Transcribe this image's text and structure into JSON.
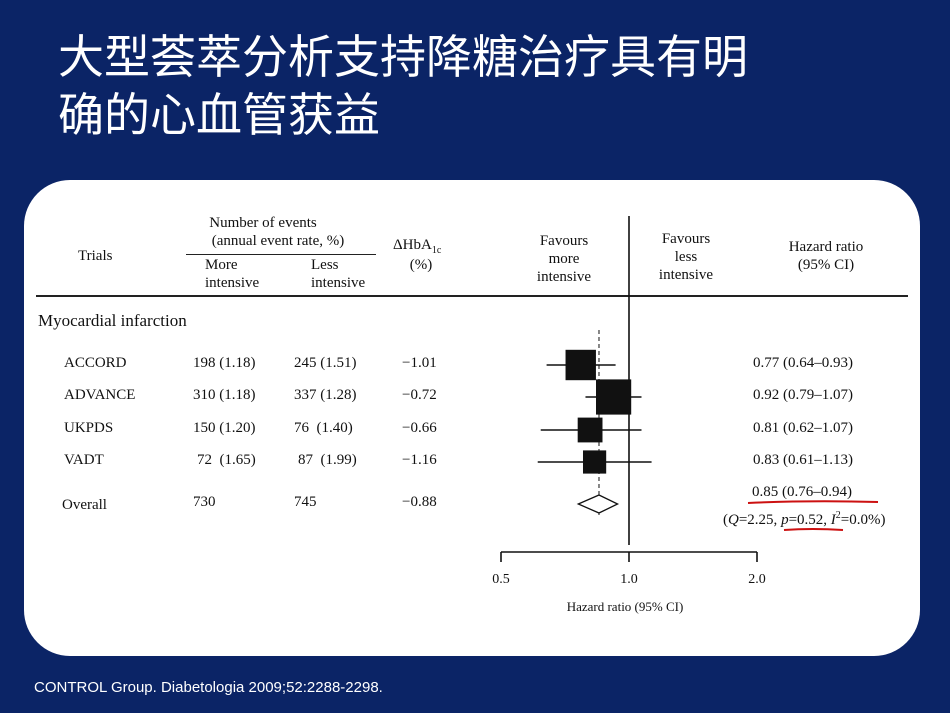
{
  "slide": {
    "title_line1": "大型荟萃分析支持降糖治疗具有明",
    "title_line2": "确的心血管获益",
    "footnote": "CONTROL Group. Diabetologia 2009;52:2288-2298."
  },
  "table": {
    "headers": {
      "trials": "Trials",
      "events_line1": "Number of events",
      "events_line2": "(annual event rate, %)",
      "more_l1": "More",
      "more_l2": "intensive",
      "less_l1": "Less",
      "less_l2": "intensive",
      "hba1c_main": "ΔHbA",
      "hba1c_sub": "1c",
      "hba1c_unit": "(%)",
      "favours_more_l1": "Favours",
      "favours_more_l2": "more",
      "favours_more_l3": "intensive",
      "favours_less_l1": "Favours",
      "favours_less_l2": "less",
      "favours_less_l3": "intensive",
      "hr_l1": "Hazard ratio",
      "hr_l2": "(95% CI)"
    },
    "section": "Myocardial infarction",
    "rows": [
      {
        "trial": "ACCORD",
        "more": "198 (1.18)",
        "less": "245 (1.51)",
        "dhba1c": "−1.01",
        "hr_text": "0.77 (0.64–0.93)"
      },
      {
        "trial": "ADVANCE",
        "more": "310 (1.18)",
        "less": "337 (1.28)",
        "dhba1c": "−0.72",
        "hr_text": "0.92 (0.79–1.07)"
      },
      {
        "trial": "UKPDS",
        "more": "150 (1.20)",
        "less": "76  (1.40)",
        "dhba1c": "−0.66",
        "hr_text": "0.81 (0.62–1.07)"
      },
      {
        "trial": "VADT",
        "more": "72  (1.65)",
        "less": "87  (1.99)",
        "dhba1c": "−1.16",
        "hr_text": "0.83 (0.61–1.13)"
      }
    ],
    "overall": {
      "trial": "Overall",
      "more": "730",
      "less": "745",
      "dhba1c": "−0.88",
      "hr_text": "0.85 (0.76–0.94)",
      "q": "Q",
      "q_val": "=2.25, ",
      "p": "p",
      "p_val": "=0.52, ",
      "i2": "I",
      "i2_sup": "2",
      "i2_val": "=0.0%)",
      "open_paren": "("
    }
  },
  "chart_data": {
    "type": "forest",
    "title": "",
    "xlabel": "Hazard ratio (95% CI)",
    "x_scale": "log",
    "xlim": [
      0.5,
      2.0
    ],
    "ticks": [
      0.5,
      1.0,
      2.0
    ],
    "tick_labels": [
      "0.5",
      "1.0",
      "2.0"
    ],
    "reference_line": 1.0,
    "pooled_dashed_line": 0.85,
    "studies": [
      {
        "name": "ACCORD",
        "hr": 0.77,
        "lo": 0.64,
        "hi": 0.93,
        "weight": 1.15
      },
      {
        "name": "ADVANCE",
        "hr": 0.92,
        "lo": 0.79,
        "hi": 1.07,
        "weight": 1.45
      },
      {
        "name": "UKPDS",
        "hr": 0.81,
        "lo": 0.62,
        "hi": 1.07,
        "weight": 0.8
      },
      {
        "name": "VADT",
        "hr": 0.83,
        "lo": 0.61,
        "hi": 1.13,
        "weight": 0.7
      }
    ],
    "overall": {
      "hr": 0.85,
      "lo": 0.76,
      "hi": 0.94
    },
    "annotation_color": "#cc1111"
  }
}
